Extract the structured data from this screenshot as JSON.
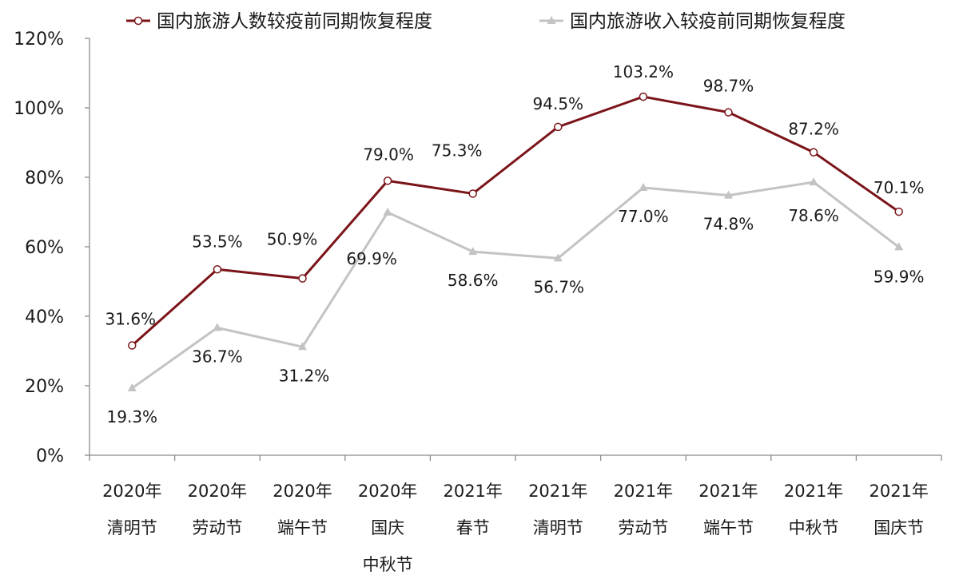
{
  "chart_data": {
    "type": "line",
    "categories": [
      [
        "2020年",
        "清明节"
      ],
      [
        "2020年",
        "劳动节"
      ],
      [
        "2020年",
        "端午节"
      ],
      [
        "2020年",
        "国庆",
        "中秋节"
      ],
      [
        "2021年",
        "春节"
      ],
      [
        "2021年",
        "清明节"
      ],
      [
        "2021年",
        "劳动节"
      ],
      [
        "2021年",
        "端午节"
      ],
      [
        "2021年",
        "中秋节"
      ],
      [
        "2021年",
        "国庆节"
      ]
    ],
    "series": [
      {
        "name": "国内旅游人数较疫前同期恢复程度",
        "color": "#7b1419",
        "marker": "circle",
        "values": [
          31.6,
          53.5,
          50.9,
          79.0,
          75.3,
          94.5,
          103.2,
          98.7,
          87.2,
          70.1
        ],
        "labels": [
          "31.6%",
          "53.5%",
          "50.9%",
          "79.0%",
          "75.3%",
          "94.5%",
          "103.2%",
          "98.7%",
          "87.2%",
          "70.1%"
        ]
      },
      {
        "name": "国内旅游收入较疫前同期恢复程度",
        "color": "#c3c3c3",
        "marker": "triangle",
        "values": [
          19.3,
          36.7,
          31.2,
          69.9,
          58.6,
          56.7,
          77.0,
          74.8,
          78.6,
          59.9
        ],
        "labels": [
          "19.3%",
          "36.7%",
          "31.2%",
          "69.9%",
          "58.6%",
          "56.7%",
          "77.0%",
          "74.8%",
          "78.6%",
          "59.9%"
        ]
      }
    ],
    "ylim": [
      0,
      120
    ],
    "yticks": [
      "0%",
      "20%",
      "40%",
      "60%",
      "80%",
      "100%",
      "120%"
    ],
    "grid": false,
    "legend_position": "top"
  }
}
